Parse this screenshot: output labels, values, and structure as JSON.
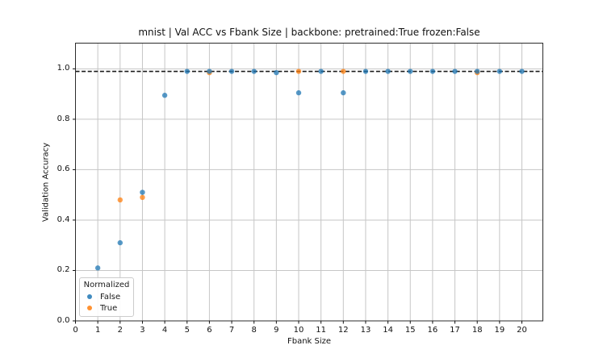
{
  "chart_data": {
    "type": "scatter",
    "title": "mnist | Val ACC vs Fbank Size | backbone: pretrained:True frozen:False",
    "xlabel": "Fbank Size",
    "ylabel": "Validation Accuracy",
    "xlim": [
      0,
      20.94
    ],
    "ylim": [
      0,
      1.102
    ],
    "x_ticks": [
      0,
      1,
      2,
      3,
      4,
      5,
      6,
      7,
      8,
      9,
      10,
      11,
      12,
      13,
      14,
      15,
      16,
      17,
      18,
      19,
      20
    ],
    "y_ticks": [
      0.0,
      0.2,
      0.4,
      0.6,
      0.8,
      1.0
    ],
    "y_tick_labels": [
      "0.0",
      "0.2",
      "0.4",
      "0.6",
      "0.8",
      "1.0"
    ],
    "grid": true,
    "background": "#ffffff",
    "grid_color": "#c6c6c6",
    "spine_color": "#2b2b2b",
    "reference_line": {
      "y": 0.99,
      "style": "dashed",
      "color": "#1a1a1a"
    },
    "legend": {
      "title": "Normalized",
      "position": "lower-left",
      "entries": [
        {
          "label": "False",
          "color": "#1f77b4"
        },
        {
          "label": "True",
          "color": "#ff7f0e"
        }
      ]
    },
    "marker": {
      "radius": 3.2,
      "opacity": 0.75
    },
    "series": [
      {
        "name": "False",
        "color": "#1f77b4",
        "points": [
          [
            1,
            0.21
          ],
          [
            2,
            0.31
          ],
          [
            3,
            0.51
          ],
          [
            4,
            0.895
          ],
          [
            5,
            0.99
          ],
          [
            6,
            0.99
          ],
          [
            7,
            0.99
          ],
          [
            8,
            0.99
          ],
          [
            9,
            0.985
          ],
          [
            10,
            0.905
          ],
          [
            11,
            0.99
          ],
          [
            12,
            0.905
          ],
          [
            13,
            0.99
          ],
          [
            14,
            0.99
          ],
          [
            15,
            0.99
          ],
          [
            16,
            0.99
          ],
          [
            17,
            0.99
          ],
          [
            18,
            0.99
          ],
          [
            19,
            0.99
          ],
          [
            20,
            0.99
          ]
        ]
      },
      {
        "name": "True",
        "color": "#ff7f0e",
        "points": [
          [
            2,
            0.48
          ],
          [
            3,
            0.49
          ],
          [
            6,
            0.985
          ],
          [
            10,
            0.99
          ],
          [
            12,
            0.99
          ],
          [
            18,
            0.985
          ]
        ]
      }
    ]
  }
}
